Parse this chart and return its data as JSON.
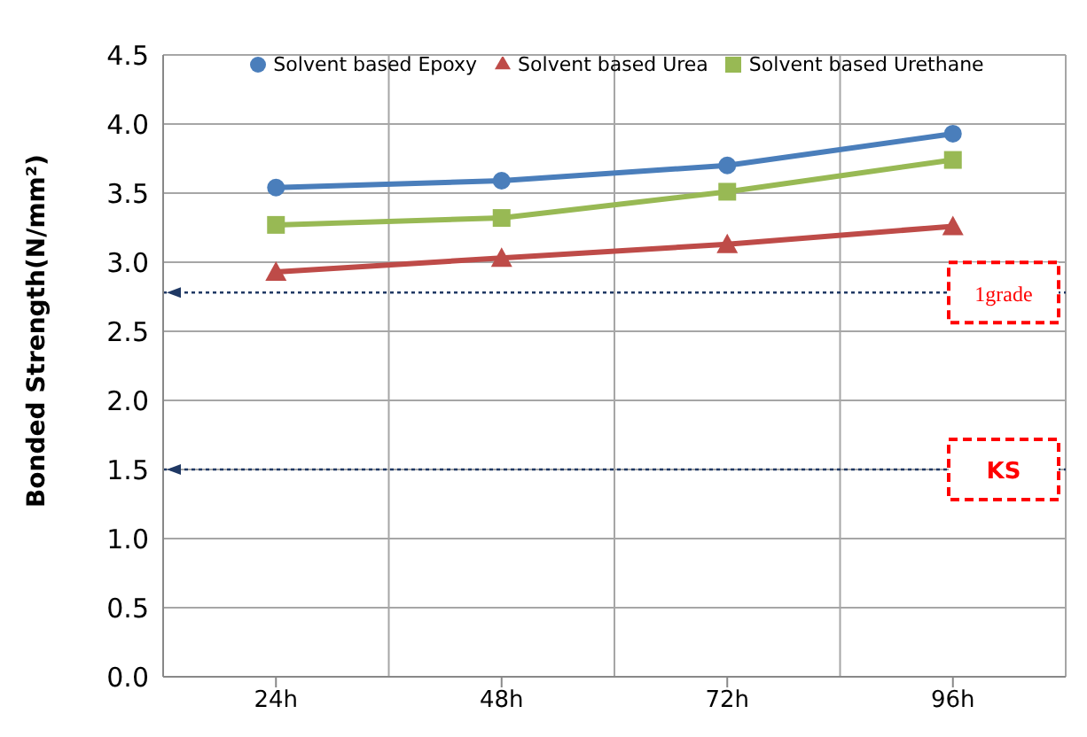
{
  "chart_data": {
    "type": "line",
    "ylabel": "Bonded Strength(N/mm²)",
    "categories": [
      "24h",
      "48h",
      "72h",
      "96h"
    ],
    "series": [
      {
        "name": "Solvent based Epoxy",
        "color": "#4a7ebb",
        "marker": "circle",
        "values": [
          3.54,
          3.59,
          3.7,
          3.93
        ]
      },
      {
        "name": "Solvent based Urea",
        "color": "#be4b48",
        "marker": "triangle",
        "values": [
          2.93,
          3.03,
          3.13,
          3.26
        ]
      },
      {
        "name": "Solvent based Urethane",
        "color": "#98b954",
        "marker": "square",
        "values": [
          3.27,
          3.32,
          3.51,
          3.74
        ]
      }
    ],
    "ylim": [
      0,
      4.5
    ],
    "yticks": [
      {
        "value": 0,
        "label": "0.0"
      },
      0.5,
      {
        "value": 1,
        "label": "1.0"
      },
      1.5,
      {
        "value": 2,
        "label": "2.0"
      },
      2.5,
      {
        "value": 3,
        "label": "3.0"
      },
      3.5,
      {
        "value": 4,
        "label": "4.0"
      },
      4.5
    ],
    "grid": true,
    "legend": "top",
    "ref_lines": [
      {
        "axis": "y",
        "value": 2.78,
        "label": "1grade",
        "color": "#1f3864",
        "line_style": "dotted"
      },
      {
        "axis": "y",
        "value": 1.5,
        "label": "KS",
        "color": "#1f3864",
        "line_style": "dotted"
      }
    ]
  }
}
